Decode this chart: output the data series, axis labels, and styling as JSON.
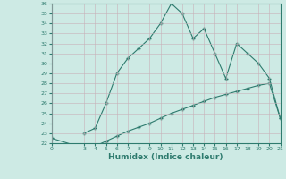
{
  "xlabel": "Humidex (Indice chaleur)",
  "x_upper": [
    3,
    4,
    5,
    6,
    7,
    8,
    9,
    10,
    11,
    12,
    13,
    14,
    15,
    16,
    17,
    18,
    19,
    20,
    21
  ],
  "y_upper": [
    23.0,
    23.5,
    26.0,
    29.0,
    30.5,
    31.5,
    32.5,
    34.0,
    36.0,
    35.0,
    32.5,
    33.5,
    31.0,
    28.5,
    32.0,
    31.0,
    30.0,
    28.5,
    24.5
  ],
  "x_lower": [
    0,
    3,
    4,
    5,
    6,
    7,
    8,
    9,
    10,
    11,
    12,
    13,
    14,
    15,
    16,
    17,
    18,
    19,
    20,
    21
  ],
  "y_lower": [
    22.5,
    21.5,
    21.7,
    22.2,
    22.7,
    23.2,
    23.6,
    24.0,
    24.5,
    25.0,
    25.4,
    25.8,
    26.2,
    26.6,
    26.9,
    27.2,
    27.5,
    27.8,
    28.0,
    24.5
  ],
  "line_color": "#2e7b6e",
  "bg_color": "#cdeae4",
  "grid_color": "#b8d8d3",
  "ylim": [
    22,
    36
  ],
  "xlim": [
    0,
    21
  ],
  "yticks": [
    22,
    23,
    24,
    25,
    26,
    27,
    28,
    29,
    30,
    31,
    32,
    33,
    34,
    35,
    36
  ],
  "xticks": [
    0,
    3,
    4,
    5,
    6,
    7,
    8,
    9,
    10,
    11,
    12,
    13,
    14,
    15,
    16,
    17,
    18,
    19,
    20,
    21
  ],
  "tick_fontsize": 4.5,
  "xlabel_fontsize": 6.5
}
